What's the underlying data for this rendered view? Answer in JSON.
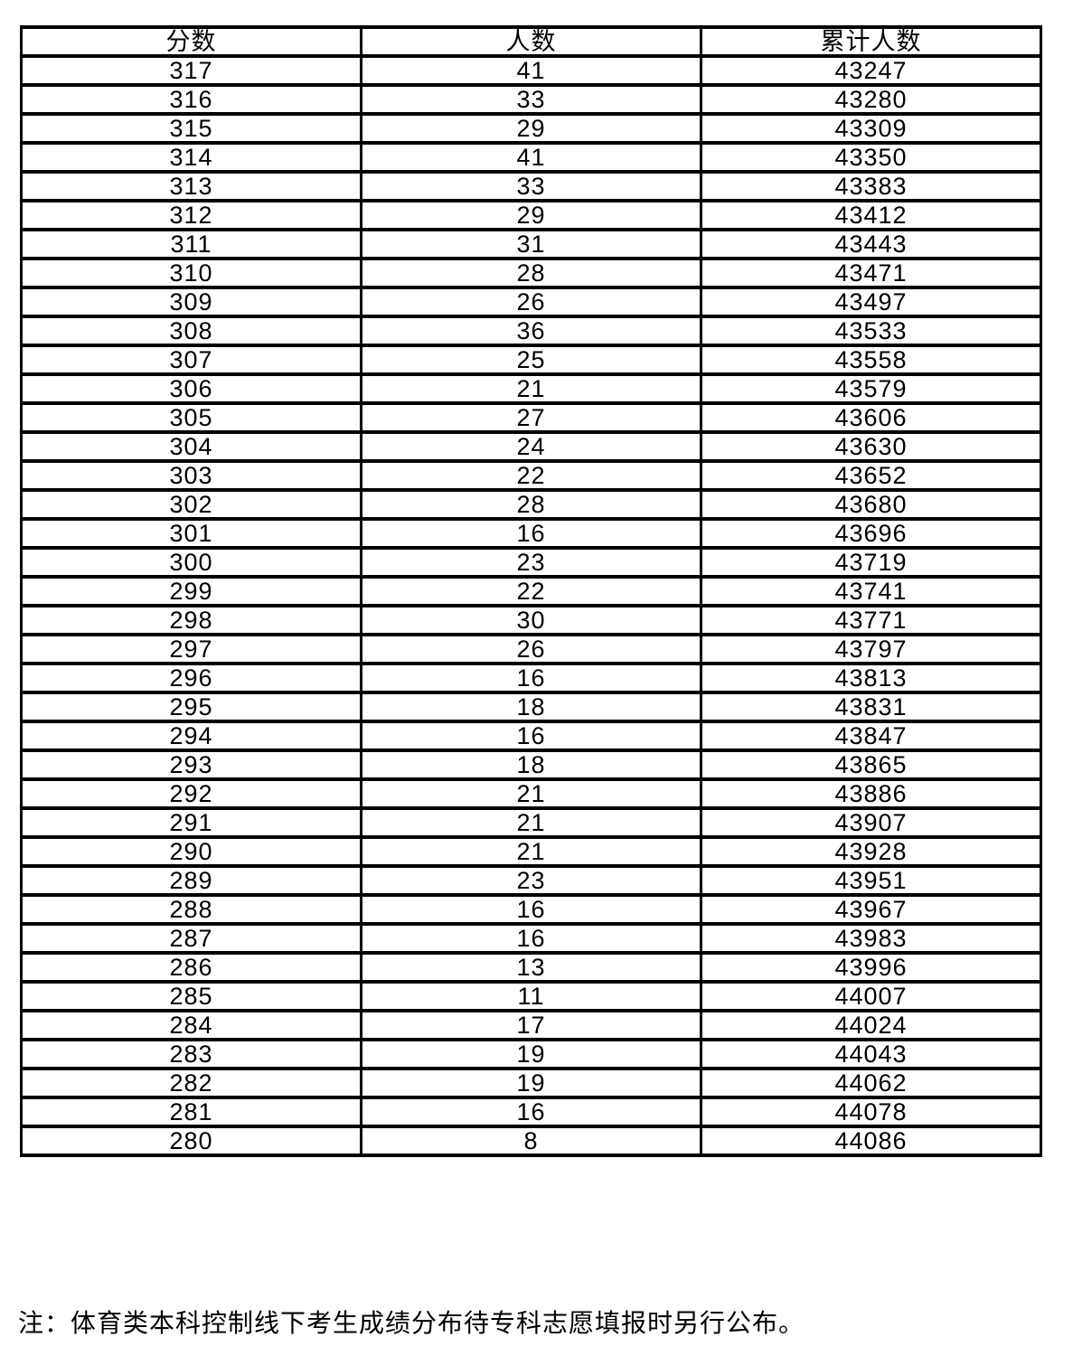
{
  "table": {
    "columns": [
      "分数",
      "人数",
      "累计人数"
    ],
    "rows": [
      [
        "317",
        "41",
        "43247"
      ],
      [
        "316",
        "33",
        "43280"
      ],
      [
        "315",
        "29",
        "43309"
      ],
      [
        "314",
        "41",
        "43350"
      ],
      [
        "313",
        "33",
        "43383"
      ],
      [
        "312",
        "29",
        "43412"
      ],
      [
        "311",
        "31",
        "43443"
      ],
      [
        "310",
        "28",
        "43471"
      ],
      [
        "309",
        "26",
        "43497"
      ],
      [
        "308",
        "36",
        "43533"
      ],
      [
        "307",
        "25",
        "43558"
      ],
      [
        "306",
        "21",
        "43579"
      ],
      [
        "305",
        "27",
        "43606"
      ],
      [
        "304",
        "24",
        "43630"
      ],
      [
        "303",
        "22",
        "43652"
      ],
      [
        "302",
        "28",
        "43680"
      ],
      [
        "301",
        "16",
        "43696"
      ],
      [
        "300",
        "23",
        "43719"
      ],
      [
        "299",
        "22",
        "43741"
      ],
      [
        "298",
        "30",
        "43771"
      ],
      [
        "297",
        "26",
        "43797"
      ],
      [
        "296",
        "16",
        "43813"
      ],
      [
        "295",
        "18",
        "43831"
      ],
      [
        "294",
        "16",
        "43847"
      ],
      [
        "293",
        "18",
        "43865"
      ],
      [
        "292",
        "21",
        "43886"
      ],
      [
        "291",
        "21",
        "43907"
      ],
      [
        "290",
        "21",
        "43928"
      ],
      [
        "289",
        "23",
        "43951"
      ],
      [
        "288",
        "16",
        "43967"
      ],
      [
        "287",
        "16",
        "43983"
      ],
      [
        "286",
        "13",
        "43996"
      ],
      [
        "285",
        "11",
        "44007"
      ],
      [
        "284",
        "17",
        "44024"
      ],
      [
        "283",
        "19",
        "44043"
      ],
      [
        "282",
        "19",
        "44062"
      ],
      [
        "281",
        "16",
        "44078"
      ],
      [
        "280",
        "8",
        "44086"
      ]
    ]
  },
  "note": "注：体育类本科控制线下考生成绩分布待专科志愿填报时另行公布。"
}
